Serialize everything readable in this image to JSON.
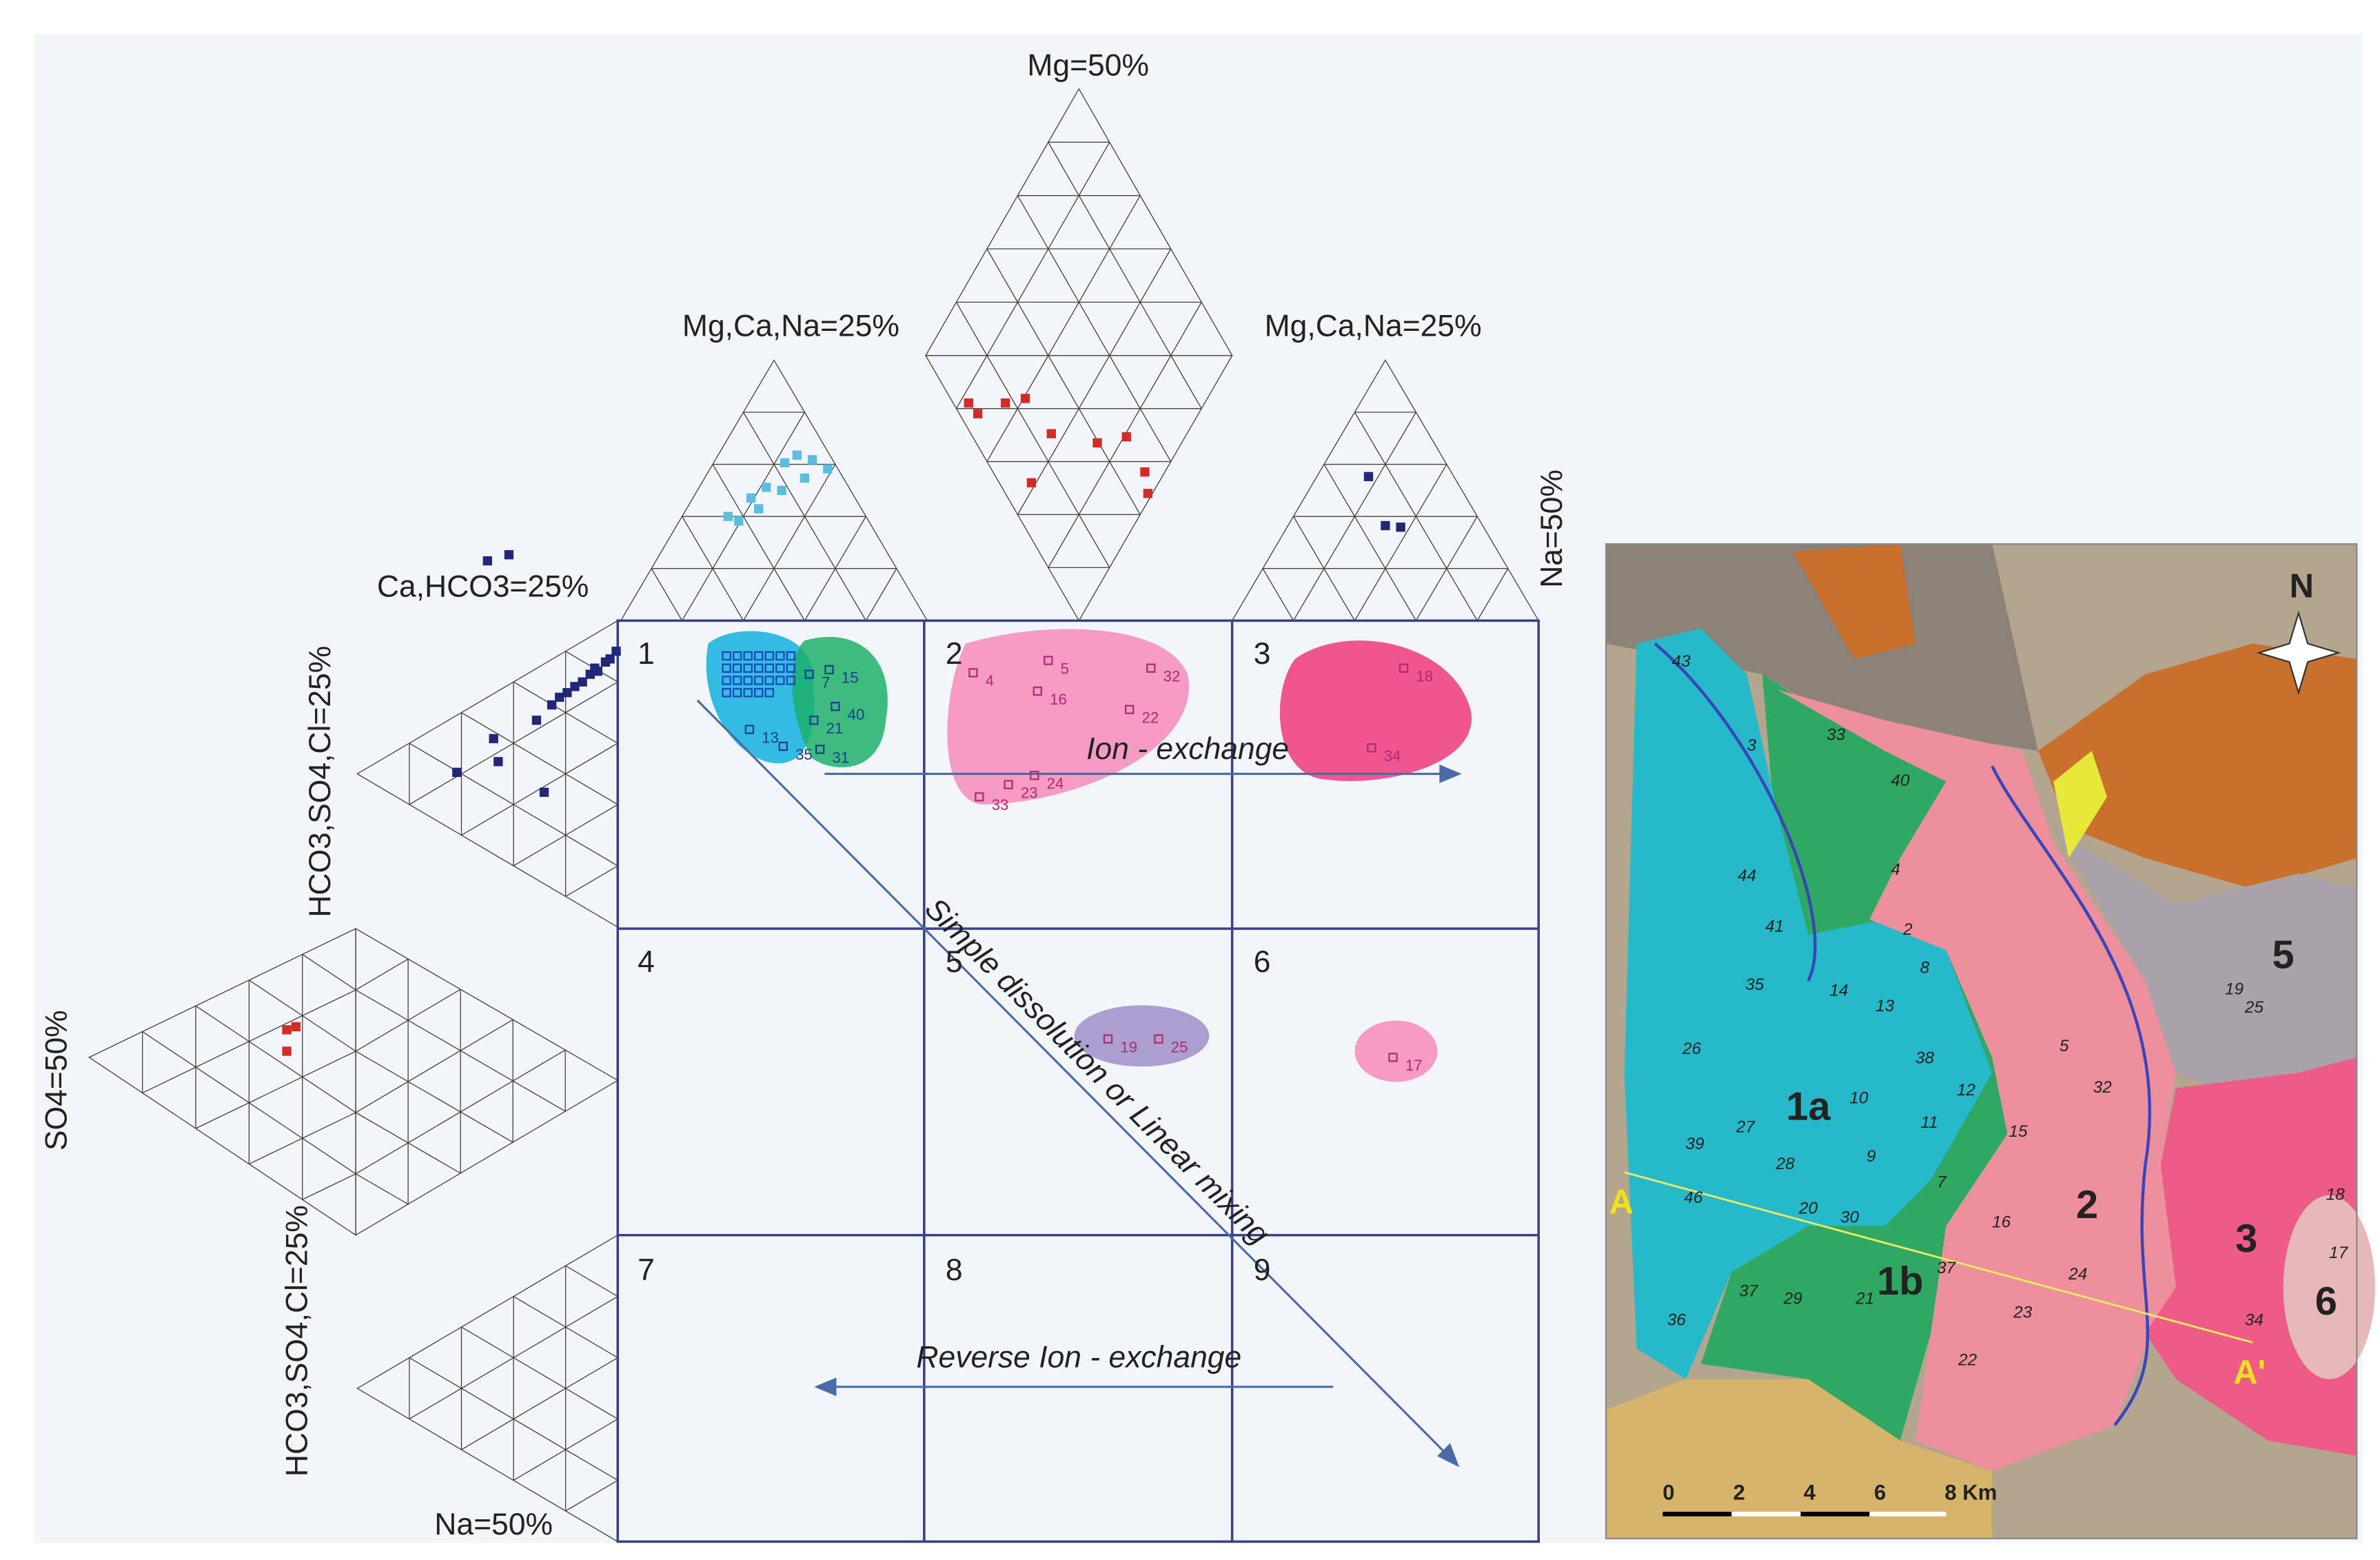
{
  "diagram": {
    "labels": {
      "mg50": "Mg=50%",
      "cation_left": "Mg,Ca,Na=25%",
      "cation_right": "Mg,Ca,Na=25%",
      "na50_right": "Na=50%",
      "cahco3": "Ca,HCO3=25%",
      "anion_upper": "HCO3,SO4,Cl=25%",
      "so4": "SO4=50%",
      "anion_lower": "HCO3,SO4,Cl=25%",
      "na50_bottom": "Na=50%"
    },
    "cells": [
      "1",
      "2",
      "3",
      "4",
      "5",
      "6",
      "7",
      "8",
      "9"
    ],
    "processes": {
      "ion_exchange": "Ion - exchange",
      "reverse": "Reverse Ion - exchange",
      "dissolution": "Simple dissolution or Linear mixing"
    },
    "samples": [
      "7",
      "15",
      "40",
      "21",
      "13",
      "35",
      "31",
      "4",
      "5",
      "16",
      "32",
      "22",
      "23",
      "24",
      "33",
      "18",
      "34",
      "19",
      "25",
      "17"
    ]
  },
  "map": {
    "north": "N",
    "zones": [
      "1a",
      "1b",
      "2",
      "3",
      "5",
      "6"
    ],
    "wells": [
      "43",
      "3",
      "33",
      "40",
      "4",
      "44",
      "41",
      "2",
      "8",
      "35",
      "14",
      "13",
      "26",
      "38",
      "10",
      "12",
      "11",
      "27",
      "9",
      "15",
      "39",
      "28",
      "7",
      "46",
      "20",
      "30",
      "16",
      "37",
      "21",
      "29",
      "37",
      "24",
      "36",
      "23",
      "22",
      "34",
      "18",
      "17",
      "19",
      "25",
      "5",
      "32"
    ],
    "section": [
      "A",
      "A'"
    ],
    "scale": [
      "0",
      "2",
      "4",
      "6",
      "8 Km"
    ]
  }
}
